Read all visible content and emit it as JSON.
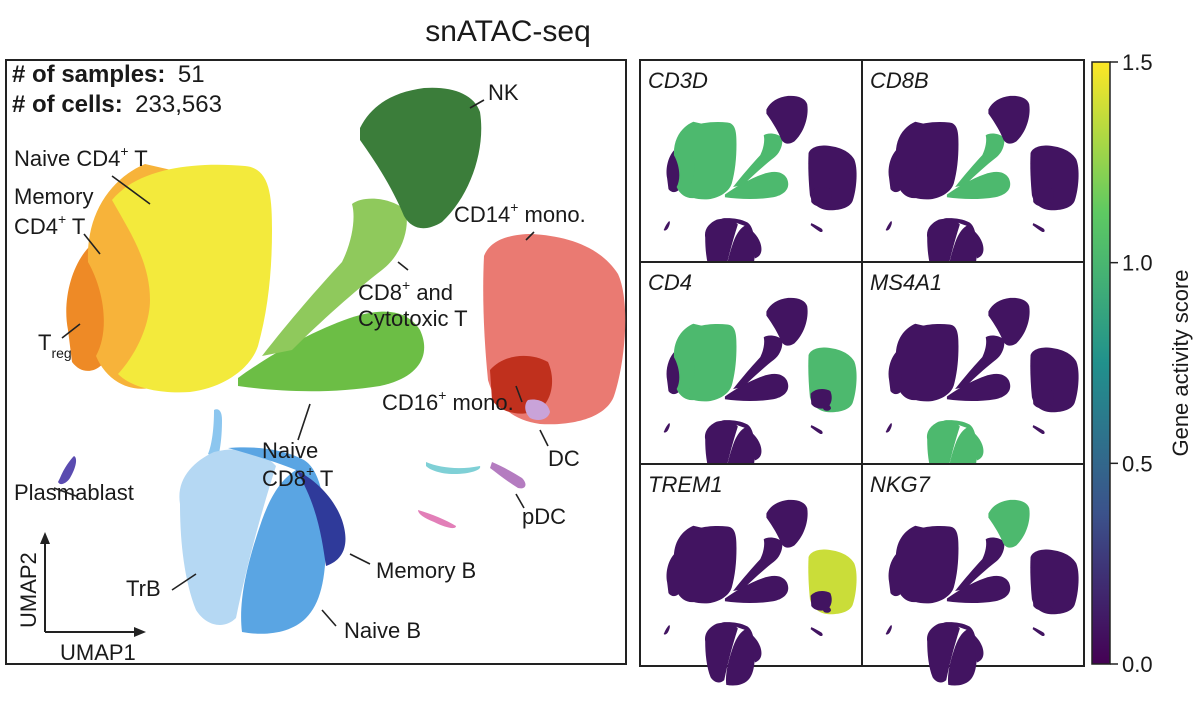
{
  "title": "snATAC-seq",
  "stats": {
    "samples_label": "# of samples:",
    "samples_value": "51",
    "cells_label": "# of cells:",
    "cells_value": "233,563"
  },
  "umap_axes": {
    "x": "UMAP1",
    "y": "UMAP2"
  },
  "clusters": [
    {
      "key": "naive_cd4",
      "parts": [
        {
          "t": "Naive CD4"
        },
        {
          "t": "+",
          "sup": true
        },
        {
          "t": " T"
        }
      ],
      "color": "#f3ea3c"
    },
    {
      "key": "memory_cd4",
      "line1": "Memory",
      "parts": [
        {
          "t": "CD4"
        },
        {
          "t": "+",
          "sup": true
        },
        {
          "t": " T"
        }
      ],
      "color": "#f7b33a"
    },
    {
      "key": "treg",
      "parts": [
        {
          "t": "T"
        },
        {
          "t": "reg",
          "sub": true
        }
      ],
      "color": "#ee8a26"
    },
    {
      "key": "nk",
      "parts": [
        {
          "t": "NK"
        }
      ],
      "color": "#3b7d3a"
    },
    {
      "key": "cd8_cyto",
      "parts": [
        {
          "t": "CD8"
        },
        {
          "t": "+",
          "sup": true
        },
        {
          "t": " and"
        }
      ],
      "line2": "Cytotoxic T",
      "color": "#8fc95c"
    },
    {
      "key": "naive_cd8",
      "line1": "Naive",
      "parts": [
        {
          "t": "CD8"
        },
        {
          "t": "+",
          "sup": true
        },
        {
          "t": " T"
        }
      ],
      "color": "#6cbe45"
    },
    {
      "key": "cd14_mono",
      "parts": [
        {
          "t": "CD14"
        },
        {
          "t": "+",
          "sup": true
        },
        {
          "t": " mono."
        }
      ],
      "color": "#ea7a72"
    },
    {
      "key": "cd16_mono",
      "parts": [
        {
          "t": "CD16"
        },
        {
          "t": "+",
          "sup": true
        },
        {
          "t": " mono."
        }
      ],
      "color": "#c0301d"
    },
    {
      "key": "dc",
      "parts": [
        {
          "t": "DC"
        }
      ],
      "color": "#c9a3d9"
    },
    {
      "key": "pdc",
      "parts": [
        {
          "t": "pDC"
        }
      ],
      "color": "#b47cc0"
    },
    {
      "key": "plasmablast",
      "parts": [
        {
          "t": "Plasmablast"
        }
      ],
      "color": "#5a4bb0"
    },
    {
      "key": "memory_b",
      "parts": [
        {
          "t": "Memory B"
        }
      ],
      "color": "#2f3a9a"
    },
    {
      "key": "trb",
      "parts": [
        {
          "t": "TrB"
        }
      ],
      "color": "#b5d8f3"
    },
    {
      "key": "naive_b",
      "parts": [
        {
          "t": "Naive B"
        }
      ],
      "color": "#5aa5e3"
    }
  ],
  "chart_data": {
    "type": "scatter",
    "title": "snATAC-seq",
    "xlabel": "UMAP1",
    "ylabel": "UMAP2",
    "panels": [
      {
        "gene": "CD3D",
        "high_clusters": [
          "naive_cd4",
          "memory_cd4",
          "naive_cd8",
          "cd8_cyto"
        ]
      },
      {
        "gene": "CD8B",
        "high_clusters": [
          "naive_cd8",
          "cd8_cyto"
        ]
      },
      {
        "gene": "CD4",
        "high_clusters": [
          "naive_cd4",
          "memory_cd4",
          "cd14_mono"
        ]
      },
      {
        "gene": "MS4A1",
        "high_clusters": [
          "naive_b",
          "memory_b",
          "trb"
        ]
      },
      {
        "gene": "TREM1",
        "high_clusters": [
          "cd14_mono"
        ]
      },
      {
        "gene": "NKG7",
        "high_clusters": [
          "nk"
        ]
      }
    ],
    "colorbar": {
      "label": "Gene activity score",
      "range": [
        0.0,
        1.5
      ],
      "ticks": [
        "0.0",
        "0.5",
        "1.0",
        "1.5"
      ],
      "colormap": "viridis",
      "stops": [
        "#440154",
        "#3b528b",
        "#21918c",
        "#5ec962",
        "#fde725"
      ]
    }
  }
}
